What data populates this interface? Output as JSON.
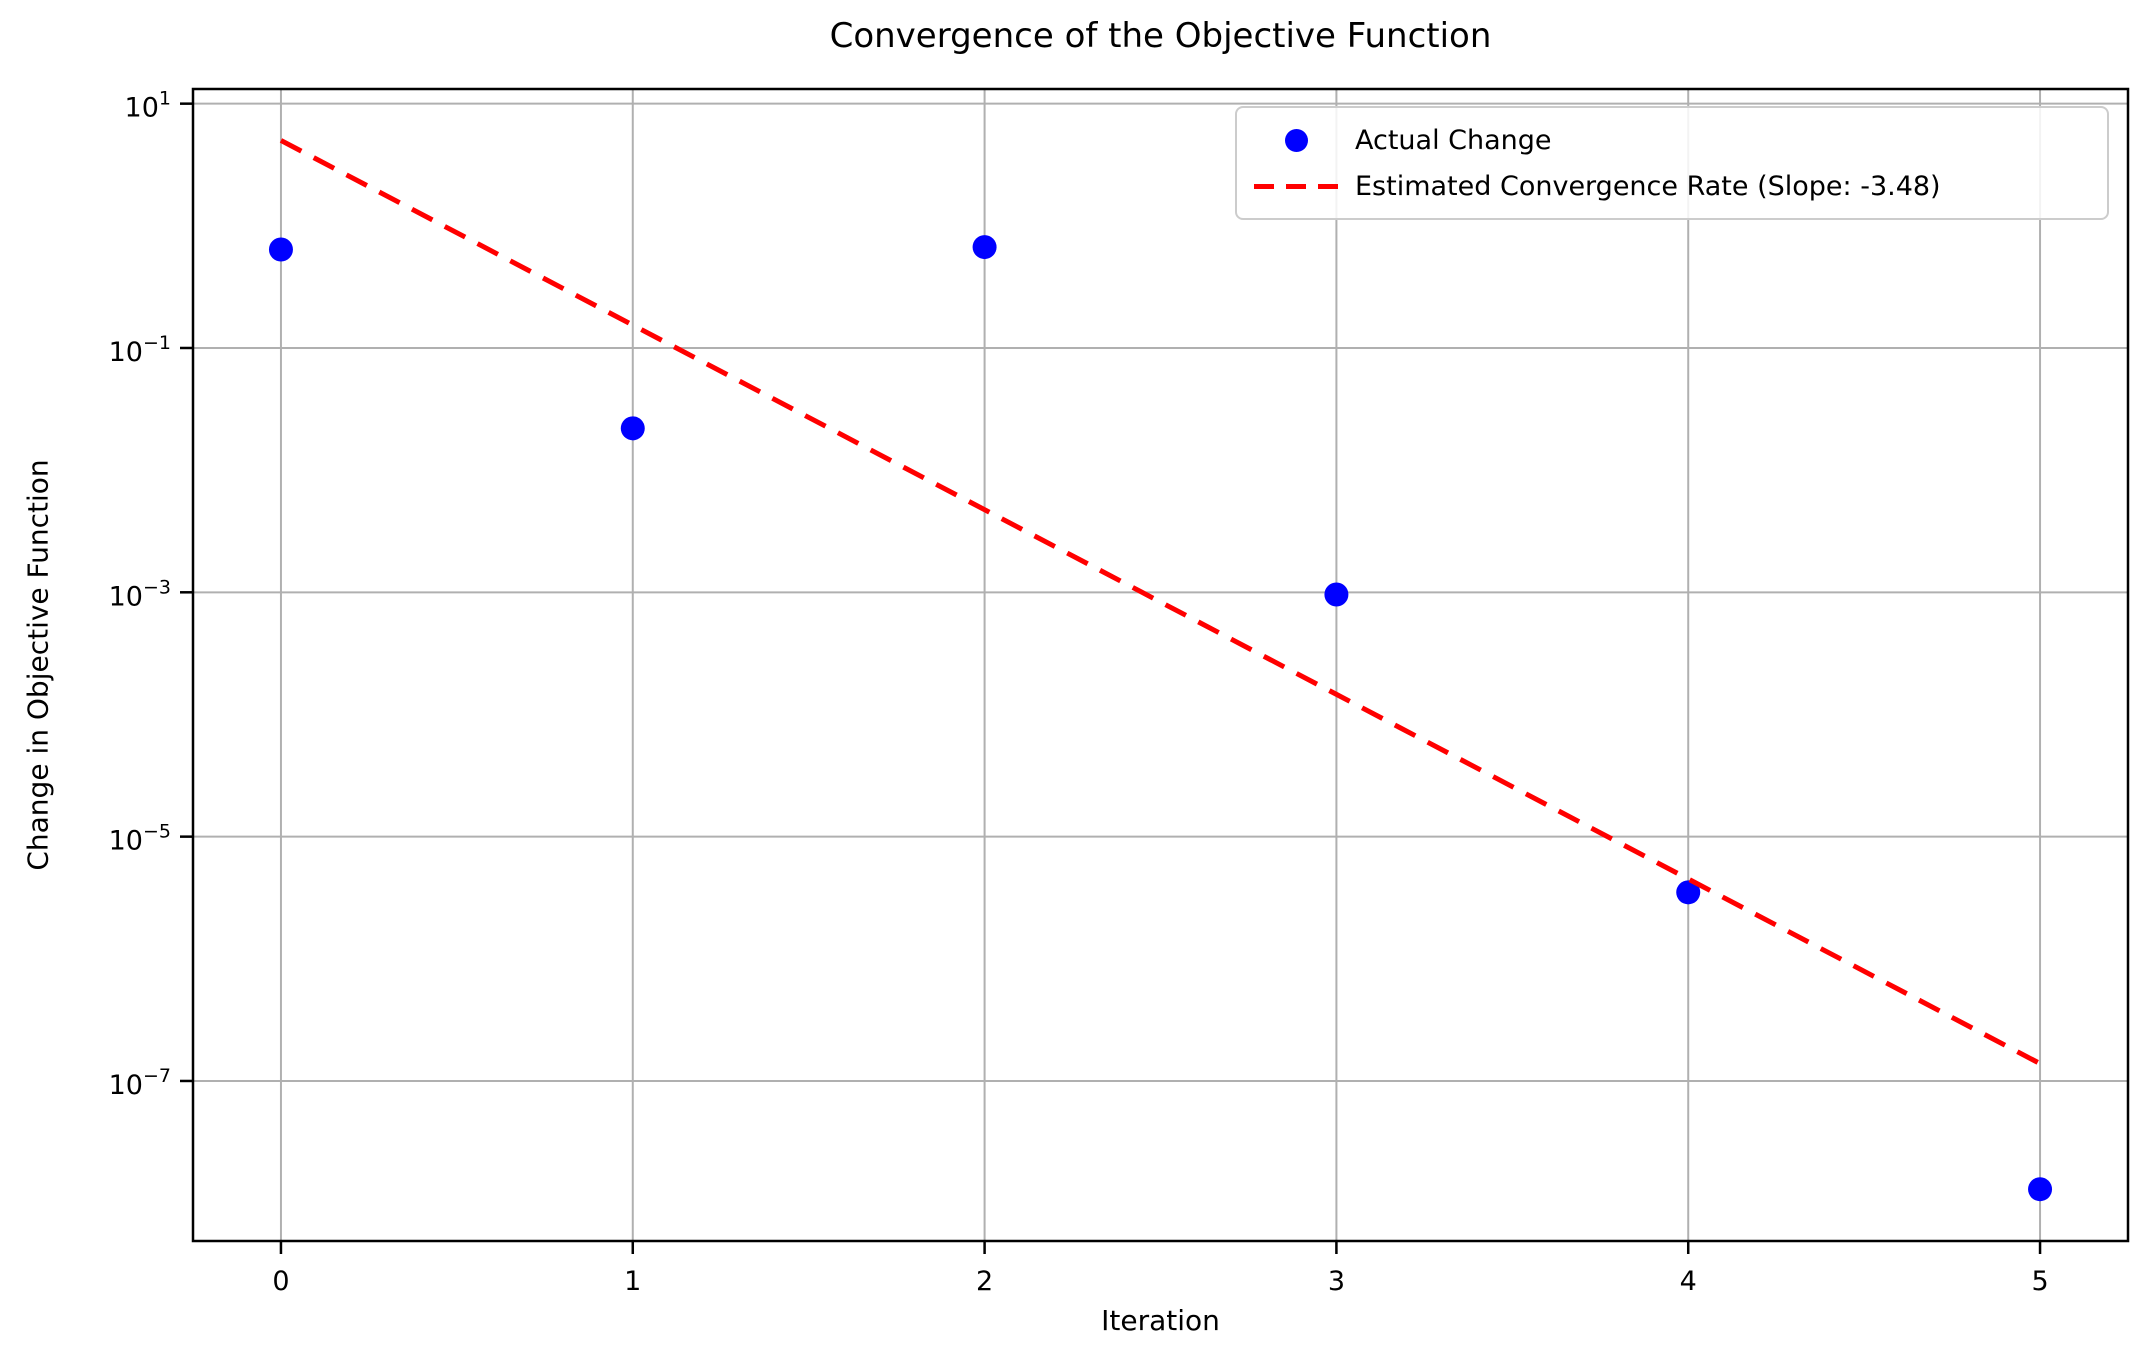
{
  "title": "Convergence of the Objective Function",
  "xlabel": "Iteration",
  "ylabel": "Change in Objective Function",
  "legend": {
    "position": "upper right",
    "items": [
      {
        "label": "Actual Change",
        "marker": "dot",
        "color": "#0000ff"
      },
      {
        "label": "Estimated Convergence Rate (Slope: -3.48)",
        "marker": "dashed-line",
        "color": "#ff0000"
      }
    ]
  },
  "colors": {
    "point_blue": "#0000ff",
    "line_red": "#ff0000",
    "grid": "#b0b0b0",
    "spine": "#000000",
    "tick_text": "#000000",
    "legend_border": "#cccccc",
    "background": "#ffffff"
  },
  "chart_data": {
    "type": "scatter",
    "title": "Convergence of the Objective Function",
    "xlabel": "Iteration",
    "ylabel": "Change in Objective Function",
    "yscale": "log",
    "grid": true,
    "legend_position": "upper right",
    "xlim": [
      -0.25,
      5.25
    ],
    "ylim_log10": [
      -8.31,
      1.12
    ],
    "xticks": [
      0,
      1,
      2,
      3,
      4,
      5
    ],
    "ytick_exponents": [
      1,
      -1,
      -3,
      -5,
      -7
    ],
    "series": [
      {
        "name": "Actual Change",
        "type": "scatter",
        "x": [
          0,
          1,
          2,
          3,
          4,
          5
        ],
        "y": [
          0.64,
          0.022,
          0.67,
          0.00096,
          3.5e-06,
          1.3e-08
        ]
      },
      {
        "name": "Estimated Convergence Rate (Slope: -3.48)",
        "type": "fit-line",
        "slope_ln": -3.48,
        "value_at_x0": 5.0,
        "x_range": [
          0,
          5
        ]
      }
    ]
  }
}
